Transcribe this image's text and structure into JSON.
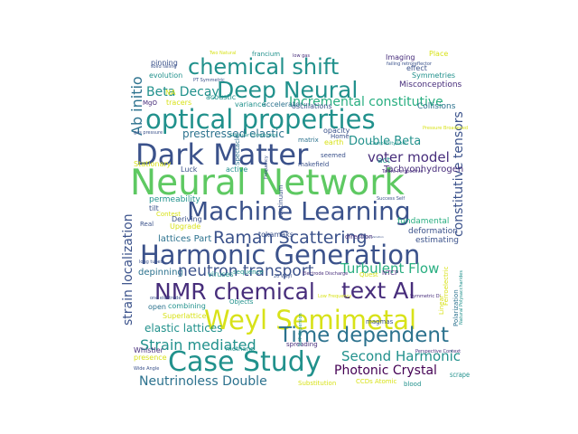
{
  "palette": {
    "navy": "#3b528b",
    "purple": "#472d7b",
    "deep": "#440154",
    "teal": "#21918c",
    "teal2": "#2c728e",
    "green": "#28ae80",
    "lime": "#5ec962",
    "yellow": "#d8e219",
    "bright": "#fde725"
  },
  "words": [
    {
      "text": "Neural Network",
      "c": "lime"
    },
    {
      "text": "Harmonic Generation",
      "c": "navy"
    },
    {
      "text": "Machine Learning",
      "c": "navy"
    },
    {
      "text": "Dark Matter",
      "c": "navy"
    },
    {
      "text": "optical properties",
      "c": "teal"
    },
    {
      "text": "Weyl Semimetal",
      "c": "yellow"
    },
    {
      "text": "Case Study",
      "c": "teal"
    },
    {
      "text": "NMR chemical",
      "c": "purple"
    },
    {
      "text": "text AI",
      "c": "purple"
    },
    {
      "text": "chemical shift",
      "c": "teal"
    },
    {
      "text": "Deep Neural",
      "c": "teal"
    },
    {
      "text": "Time dependent",
      "c": "teal2"
    },
    {
      "text": "Raman Scattering",
      "c": "navy"
    },
    {
      "text": "neutron transport",
      "c": "navy"
    },
    {
      "text": "Turbulent Flow",
      "c": "green"
    },
    {
      "text": "Strain mediated",
      "c": "teal"
    },
    {
      "text": "Second Harmonic",
      "c": "teal"
    },
    {
      "text": "Photonic Crystal",
      "c": "deep"
    },
    {
      "text": "Neutrinoless Double",
      "c": "teal2"
    },
    {
      "text": "Incremental constitutive",
      "c": "green"
    },
    {
      "text": "Beta Decay",
      "c": "teal"
    },
    {
      "text": "voter model",
      "c": "purple"
    },
    {
      "text": "Double Beta",
      "c": "teal"
    },
    {
      "text": "prestressed elastic",
      "c": "teal2"
    },
    {
      "text": "Ab initio",
      "c": "teal2"
    },
    {
      "text": "strain localization",
      "c": "navy"
    },
    {
      "text": "constitutive tensors",
      "c": "navy"
    },
    {
      "text": "elastic lattices",
      "c": "teal"
    },
    {
      "text": "lattices Part",
      "c": "teal2"
    },
    {
      "text": "depinning",
      "c": "teal2"
    },
    {
      "text": "permeability",
      "c": "teal"
    },
    {
      "text": "fundamental",
      "c": "green"
    },
    {
      "text": "deformation",
      "c": "navy"
    },
    {
      "text": "estimating",
      "c": "navy"
    },
    {
      "text": "Tachyonhydrogen",
      "c": "purple"
    },
    {
      "text": "Misconceptions",
      "c": "purple"
    },
    {
      "text": "Collisions",
      "c": "teal2"
    },
    {
      "text": "oscillations",
      "c": "navy"
    },
    {
      "text": "accelerator",
      "c": "teal2"
    },
    {
      "text": "acoustic",
      "c": "teal"
    },
    {
      "text": "variance",
      "c": "teal"
    },
    {
      "text": "tracers",
      "c": "yellow"
    },
    {
      "text": "evolution",
      "c": "teal"
    },
    {
      "text": "pinning",
      "c": "navy"
    },
    {
      "text": "Symmetries",
      "c": "teal"
    },
    {
      "text": "effect",
      "c": "navy"
    },
    {
      "text": "Imaging",
      "c": "purple"
    },
    {
      "text": "Place",
      "c": "yellow"
    },
    {
      "text": "francium",
      "c": "teal"
    },
    {
      "text": "Two Natural",
      "c": "yellow"
    },
    {
      "text": "low gas",
      "c": "purple"
    },
    {
      "text": "solid falling",
      "c": "navy"
    },
    {
      "text": "PT Symmetric",
      "c": "navy"
    },
    {
      "text": "MgO",
      "c": "purple"
    },
    {
      "text": "opacity",
      "c": "navy"
    },
    {
      "text": "matrix",
      "c": "teal2"
    },
    {
      "text": "Home",
      "c": "navy"
    },
    {
      "text": "earth",
      "c": "yellow"
    },
    {
      "text": "act",
      "c": "teal"
    },
    {
      "text": "seemed",
      "c": "navy"
    },
    {
      "text": "makefield",
      "c": "navy"
    },
    {
      "text": "Talent Perspective",
      "c": "purple"
    },
    {
      "text": "Spectacle",
      "c": "teal2"
    },
    {
      "text": "Luck",
      "c": "navy"
    },
    {
      "text": "active",
      "c": "teal"
    },
    {
      "text": "Stationary",
      "c": "yellow"
    },
    {
      "text": "Deriving",
      "c": "navy"
    },
    {
      "text": "Upgrade",
      "c": "yellow"
    },
    {
      "text": "Real",
      "c": "navy"
    },
    {
      "text": "tilt",
      "c": "navy"
    },
    {
      "text": "Contest",
      "c": "yellow"
    },
    {
      "text": "tokamaks",
      "c": "navy"
    },
    {
      "text": "direction",
      "c": "purple"
    },
    {
      "text": "viruses",
      "c": "teal"
    },
    {
      "text": "sequence",
      "c": "teal"
    },
    {
      "text": "Quest",
      "c": "yellow"
    },
    {
      "text": "NTCP",
      "c": "purple"
    },
    {
      "text": "Objects",
      "c": "teal"
    },
    {
      "text": "combining",
      "c": "teal"
    },
    {
      "text": "Superlattice",
      "c": "yellow"
    },
    {
      "text": "open",
      "c": "teal2"
    },
    {
      "text": "methane",
      "c": "teal"
    },
    {
      "text": "spreading",
      "c": "purple"
    },
    {
      "text": "Whistler",
      "c": "purple"
    },
    {
      "text": "presence",
      "c": "yellow"
    },
    {
      "text": "magmas",
      "c": "navy"
    },
    {
      "text": "Polarization",
      "c": "teal2"
    },
    {
      "text": "Perspective Context",
      "c": "purple"
    },
    {
      "text": "scrape",
      "c": "teal"
    },
    {
      "text": "Substitution",
      "c": "yellow"
    },
    {
      "text": "blood",
      "c": "teal"
    },
    {
      "text": "CCDs Atomic",
      "c": "yellow"
    },
    {
      "text": "Wide Angle",
      "c": "navy"
    },
    {
      "text": "Self dispersion",
      "c": "teal"
    },
    {
      "text": "continuum",
      "c": "navy"
    },
    {
      "text": "Success Self",
      "c": "navy"
    },
    {
      "text": "Electrode Discharge",
      "c": "purple"
    },
    {
      "text": "20 Weyl",
      "c": "navy"
    },
    {
      "text": "long tubes",
      "c": "navy"
    },
    {
      "text": "one electrode",
      "c": "navy"
    },
    {
      "text": "Frequency",
      "c": "navy"
    },
    {
      "text": "Symmetric Di",
      "c": "purple"
    },
    {
      "text": "Natural Polysaccharides",
      "c": "teal"
    },
    {
      "text": "Ferroelectric",
      "c": "yellow"
    },
    {
      "text": "Linear",
      "c": "yellow"
    },
    {
      "text": "Granular Composites",
      "c": "teal"
    },
    {
      "text": "Pressure Broadened",
      "c": "yellow"
    },
    {
      "text": "Complexity Low",
      "c": "teal"
    },
    {
      "text": "gas pressure",
      "c": "navy"
    },
    {
      "text": "NA",
      "c": "yellow"
    },
    {
      "text": "Low Frequency",
      "c": "yellow"
    },
    {
      "text": "failing retroreflector",
      "c": "navy"
    },
    {
      "text": "Seasonal Variation",
      "c": "navy"
    }
  ]
}
